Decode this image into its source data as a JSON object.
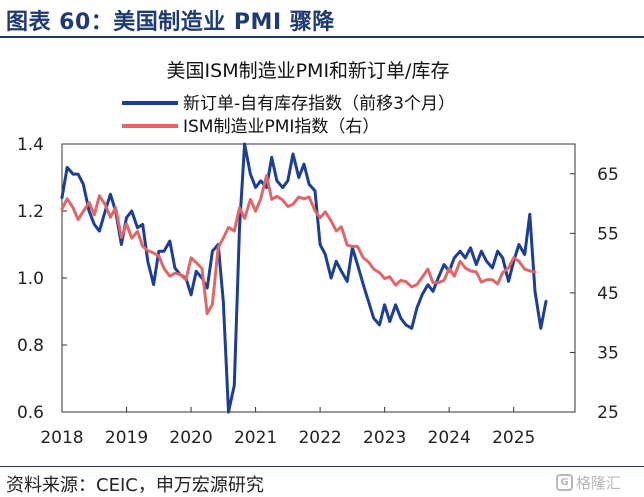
{
  "figure_title": "图表 60：美国制造业 PMI 骤降",
  "source": "资料来源：CEIC，申万宏源研究",
  "watermark": {
    "logo_text": "G",
    "text": "格隆汇"
  },
  "chart_data": {
    "type": "line",
    "title": "美国ISM制造业PMI和新订单/库存",
    "legend_position": "top-center",
    "x_ticks": [
      "2018",
      "2019",
      "2020",
      "2021",
      "2022",
      "2023",
      "2024",
      "2025"
    ],
    "x_range": [
      2018.0,
      2025.95
    ],
    "y_left": {
      "ticks": [
        "0.6",
        "0.8",
        "1.0",
        "1.2",
        "1.4"
      ],
      "range": [
        0.6,
        1.4
      ]
    },
    "y_right": {
      "ticks": [
        "25",
        "35",
        "45",
        "55",
        "65"
      ],
      "range": [
        25,
        70
      ]
    },
    "grid": false,
    "colors": {
      "series_0": "#1c3f94",
      "series_1": "#e06767"
    },
    "series": [
      {
        "name": "新订单-自有库存指数（前移3个月）",
        "axis": "left",
        "points": [
          [
            2018.0,
            1.24
          ],
          [
            2018.08,
            1.33
          ],
          [
            2018.17,
            1.31
          ],
          [
            2018.25,
            1.31
          ],
          [
            2018.33,
            1.28
          ],
          [
            2018.42,
            1.2
          ],
          [
            2018.5,
            1.16
          ],
          [
            2018.58,
            1.14
          ],
          [
            2018.67,
            1.2
          ],
          [
            2018.75,
            1.25
          ],
          [
            2018.83,
            1.2
          ],
          [
            2018.92,
            1.1
          ],
          [
            2019.0,
            1.18
          ],
          [
            2019.08,
            1.2
          ],
          [
            2019.17,
            1.15
          ],
          [
            2019.25,
            1.16
          ],
          [
            2019.33,
            1.05
          ],
          [
            2019.42,
            0.98
          ],
          [
            2019.5,
            1.08
          ],
          [
            2019.58,
            1.08
          ],
          [
            2019.67,
            1.11
          ],
          [
            2019.75,
            1.03
          ],
          [
            2019.83,
            1.01
          ],
          [
            2019.92,
            1.0
          ],
          [
            2020.0,
            0.95
          ],
          [
            2020.08,
            1.02
          ],
          [
            2020.17,
            1.0
          ],
          [
            2020.25,
            0.97
          ],
          [
            2020.33,
            1.08
          ],
          [
            2020.42,
            1.1
          ],
          [
            2020.5,
            0.93
          ],
          [
            2020.58,
            0.6
          ],
          [
            2020.67,
            0.68
          ],
          [
            2020.75,
            1.15
          ],
          [
            2020.83,
            1.4
          ],
          [
            2020.92,
            1.31
          ],
          [
            2021.0,
            1.27
          ],
          [
            2021.08,
            1.29
          ],
          [
            2021.17,
            1.27
          ],
          [
            2021.25,
            1.36
          ],
          [
            2021.33,
            1.29
          ],
          [
            2021.42,
            1.27
          ],
          [
            2021.5,
            1.29
          ],
          [
            2021.58,
            1.37
          ],
          [
            2021.67,
            1.3
          ],
          [
            2021.75,
            1.34
          ],
          [
            2021.83,
            1.28
          ],
          [
            2021.92,
            1.26
          ],
          [
            2022.0,
            1.1
          ],
          [
            2022.08,
            1.07
          ],
          [
            2022.17,
            1.0
          ],
          [
            2022.25,
            1.05
          ],
          [
            2022.33,
            1.02
          ],
          [
            2022.42,
            0.99
          ],
          [
            2022.5,
            1.09
          ],
          [
            2022.58,
            1.04
          ],
          [
            2022.67,
            0.98
          ],
          [
            2022.75,
            0.93
          ],
          [
            2022.83,
            0.88
          ],
          [
            2022.92,
            0.86
          ],
          [
            2023.0,
            0.92
          ],
          [
            2023.08,
            0.87
          ],
          [
            2023.17,
            0.92
          ],
          [
            2023.25,
            0.88
          ],
          [
            2023.33,
            0.86
          ],
          [
            2023.42,
            0.85
          ],
          [
            2023.5,
            0.91
          ],
          [
            2023.58,
            0.95
          ],
          [
            2023.67,
            0.98
          ],
          [
            2023.75,
            0.96
          ],
          [
            2023.83,
            1.0
          ],
          [
            2023.92,
            1.04
          ],
          [
            2024.0,
            1.02
          ],
          [
            2024.08,
            1.06
          ],
          [
            2024.17,
            1.08
          ],
          [
            2024.25,
            1.06
          ],
          [
            2024.33,
            1.09
          ],
          [
            2024.42,
            1.04
          ],
          [
            2024.5,
            1.08
          ],
          [
            2024.58,
            1.05
          ],
          [
            2024.67,
            1.03
          ],
          [
            2024.75,
            1.08
          ],
          [
            2024.83,
            1.06
          ],
          [
            2024.92,
            0.99
          ],
          [
            2025.0,
            1.05
          ],
          [
            2025.08,
            1.1
          ],
          [
            2025.17,
            1.07
          ],
          [
            2025.25,
            1.19
          ],
          [
            2025.33,
            0.96
          ],
          [
            2025.42,
            0.85
          ],
          [
            2025.5,
            0.93
          ]
        ]
      },
      {
        "name": "ISM制造业PMI指数（右）",
        "axis": "right",
        "points": [
          [
            2018.0,
            59.1
          ],
          [
            2018.08,
            60.8
          ],
          [
            2018.17,
            59.3
          ],
          [
            2018.25,
            57.3
          ],
          [
            2018.33,
            58.7
          ],
          [
            2018.42,
            60.2
          ],
          [
            2018.5,
            58.1
          ],
          [
            2018.58,
            61.3
          ],
          [
            2018.67,
            59.8
          ],
          [
            2018.75,
            57.7
          ],
          [
            2018.83,
            59.3
          ],
          [
            2018.92,
            54.3
          ],
          [
            2019.0,
            56.6
          ],
          [
            2019.08,
            54.2
          ],
          [
            2019.17,
            55.3
          ],
          [
            2019.25,
            52.8
          ],
          [
            2019.33,
            52.1
          ],
          [
            2019.42,
            51.7
          ],
          [
            2019.5,
            51.2
          ],
          [
            2019.58,
            49.1
          ],
          [
            2019.67,
            47.8
          ],
          [
            2019.75,
            48.3
          ],
          [
            2019.83,
            48.1
          ],
          [
            2019.92,
            47.2
          ],
          [
            2020.0,
            50.9
          ],
          [
            2020.08,
            50.1
          ],
          [
            2020.17,
            49.1
          ],
          [
            2020.25,
            41.5
          ],
          [
            2020.33,
            43.1
          ],
          [
            2020.42,
            52.6
          ],
          [
            2020.5,
            54.2
          ],
          [
            2020.58,
            56.0
          ],
          [
            2020.67,
            55.4
          ],
          [
            2020.75,
            59.3
          ],
          [
            2020.83,
            57.5
          ],
          [
            2020.92,
            60.7
          ],
          [
            2021.0,
            58.7
          ],
          [
            2021.08,
            60.8
          ],
          [
            2021.17,
            64.7
          ],
          [
            2021.25,
            60.7
          ],
          [
            2021.33,
            61.2
          ],
          [
            2021.42,
            60.6
          ],
          [
            2021.5,
            59.5
          ],
          [
            2021.58,
            59.9
          ],
          [
            2021.67,
            61.1
          ],
          [
            2021.75,
            60.8
          ],
          [
            2021.83,
            61.1
          ],
          [
            2021.92,
            58.8
          ],
          [
            2022.0,
            57.6
          ],
          [
            2022.08,
            58.6
          ],
          [
            2022.17,
            57.1
          ],
          [
            2022.25,
            55.4
          ],
          [
            2022.33,
            56.1
          ],
          [
            2022.42,
            53.0
          ],
          [
            2022.5,
            52.8
          ],
          [
            2022.58,
            52.8
          ],
          [
            2022.67,
            50.9
          ],
          [
            2022.75,
            50.2
          ],
          [
            2022.83,
            49.0
          ],
          [
            2022.92,
            48.4
          ],
          [
            2023.0,
            47.4
          ],
          [
            2023.08,
            47.7
          ],
          [
            2023.17,
            46.3
          ],
          [
            2023.25,
            47.1
          ],
          [
            2023.33,
            46.9
          ],
          [
            2023.42,
            46.0
          ],
          [
            2023.5,
            46.4
          ],
          [
            2023.58,
            47.6
          ],
          [
            2023.67,
            49.0
          ],
          [
            2023.75,
            46.7
          ],
          [
            2023.83,
            46.7
          ],
          [
            2023.92,
            47.1
          ],
          [
            2024.0,
            49.1
          ],
          [
            2024.08,
            47.8
          ],
          [
            2024.17,
            50.3
          ],
          [
            2024.25,
            49.2
          ],
          [
            2024.33,
            48.7
          ],
          [
            2024.42,
            48.5
          ],
          [
            2024.5,
            46.8
          ],
          [
            2024.58,
            47.2
          ],
          [
            2024.67,
            47.2
          ],
          [
            2024.75,
            46.5
          ],
          [
            2024.83,
            48.4
          ],
          [
            2024.92,
            49.2
          ],
          [
            2025.0,
            50.9
          ],
          [
            2025.08,
            50.3
          ],
          [
            2025.17,
            49.0
          ],
          [
            2025.25,
            48.7
          ],
          [
            2025.33,
            48.5
          ]
        ]
      }
    ]
  }
}
